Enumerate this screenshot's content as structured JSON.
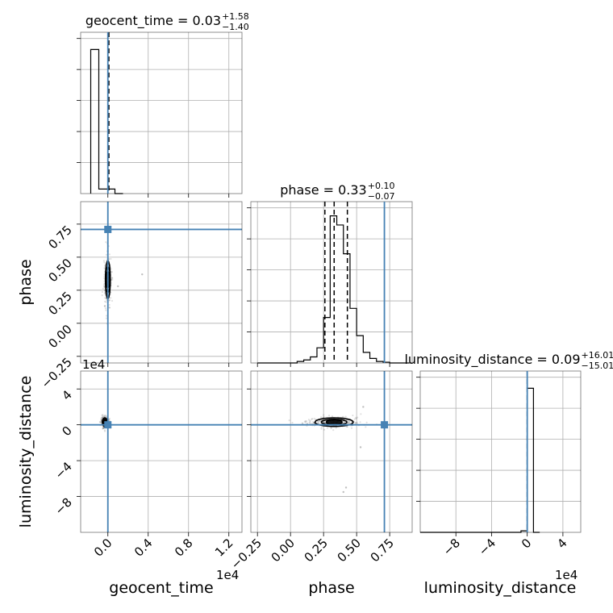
{
  "chart_data": {
    "type": "corner",
    "truth_color": "#4682b4",
    "parameters": [
      {
        "name": "geocent_time",
        "title": "geocent_time = 0.03",
        "sup": "+1.58",
        "sub": "−1.40",
        "truth": 0.0
      },
      {
        "name": "phase",
        "title": "phase = 0.33",
        "sup": "+0.10",
        "sub": "−0.07",
        "truth": 0.71
      },
      {
        "name": "luminosity_distance",
        "title": "luminosity_distance = 0.09",
        "sup": "+16.01",
        "sub": "−15.01",
        "truth": 0.0
      }
    ],
    "axes": {
      "geocent_time": {
        "range": [
          -0.27,
          1.33
        ],
        "ticks": [
          0.0,
          0.4,
          0.8,
          1.2
        ],
        "tick_labels": [
          "0.0",
          "0.4",
          "0.8",
          "1.2"
        ],
        "offset_text": "1e4"
      },
      "phase": {
        "range": [
          -0.3,
          0.92
        ],
        "ticks": [
          -0.25,
          0.0,
          0.25,
          0.5,
          0.75
        ],
        "tick_labels": [
          "−0.25",
          "0.00",
          "0.25",
          "0.50",
          "0.75"
        ]
      },
      "luminosity_distance": {
        "range": [
          -12.0,
          6.0
        ],
        "ticks": [
          -8,
          -4,
          0,
          4
        ],
        "tick_labels": [
          "−8",
          "−4",
          "0",
          "4"
        ],
        "offset_text": "1e4"
      }
    },
    "histograms": [
      {
        "param": "geocent_time",
        "bin_edges": [
          -0.17,
          -0.09,
          -0.01,
          0.07,
          0.15
        ],
        "counts": [
          0.95,
          0.03,
          0.03,
          0.0
        ],
        "quantiles": [
          0.01
        ]
      },
      {
        "param": "phase",
        "bin_edges": [
          -0.25,
          -0.2,
          -0.15,
          -0.1,
          -0.05,
          0.0,
          0.05,
          0.1,
          0.15,
          0.2,
          0.25,
          0.3,
          0.35,
          0.4,
          0.45,
          0.5,
          0.55,
          0.6,
          0.65,
          0.7,
          0.75,
          0.8,
          0.85,
          0.9
        ],
        "counts": [
          0.0,
          0.0,
          0.0,
          0.0,
          0.0,
          0.0,
          0.01,
          0.02,
          0.04,
          0.1,
          0.3,
          0.97,
          0.91,
          0.72,
          0.36,
          0.18,
          0.07,
          0.03,
          0.01,
          0.005,
          0.0,
          0.0,
          0.0
        ],
        "quantiles": [
          0.26,
          0.33,
          0.43
        ]
      },
      {
        "param": "luminosity_distance",
        "bin_edges": [
          -12.0,
          -0.7,
          0.0,
          0.7,
          1.4
        ],
        "counts": [
          0.0,
          0.01,
          0.95,
          0.0
        ],
        "quantiles": [
          0.0
        ]
      }
    ],
    "pairs": [
      {
        "x": "geocent_time",
        "y": "phase",
        "mode": [
          0.0,
          0.33
        ],
        "spread": [
          0.01,
          0.06
        ],
        "truth": [
          0.0,
          0.71
        ],
        "outliers": [
          [
            0.34,
            0.37
          ],
          [
            0.1,
            0.28
          ],
          [
            -0.03,
            0.13
          ]
        ]
      },
      {
        "x": "geocent_time",
        "y": "luminosity_distance",
        "mode": [
          -0.03,
          0.3
        ],
        "spread": [
          0.01,
          0.2
        ],
        "truth": [
          0.0,
          0.0
        ],
        "outliers": []
      },
      {
        "x": "phase",
        "y": "luminosity_distance",
        "mode": [
          0.33,
          0.3
        ],
        "spread": [
          0.06,
          0.2
        ],
        "truth": [
          0.71,
          0.0
        ],
        "outliers": [
          [
            0.4,
            -7.5
          ],
          [
            0.42,
            -7.0
          ],
          [
            0.53,
            -2.5
          ],
          [
            0.55,
            2.0
          ],
          [
            0.18,
            0.2
          ]
        ]
      }
    ]
  }
}
